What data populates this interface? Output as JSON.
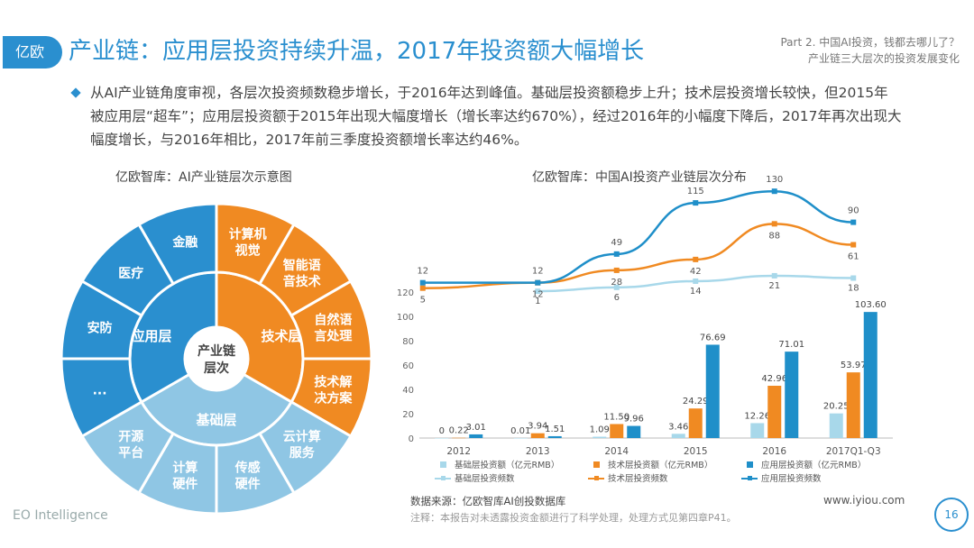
{
  "header": {
    "logo": "亿欧",
    "title": "产业链：应用层投资持续升温，2017年投资额大幅增长",
    "part_line1": "Part 2. 中国AI投资，钱都去哪儿了？",
    "part_line2": "产业链三大层次的投资发展变化"
  },
  "summary": "从AI产业链角度审视，各层次投资频数稳步增长，于2016年达到峰值。基础层投资额稳步上升；技术层投资增长较快，但2015年被应用层“超车”；应用层投资额于2015年出现大幅度增长（增长率达约670%），经过2016年的小幅度下降后，2017年再次出现大幅度增长，与2016年相比，2017年前三季度投资额增长率达约46%。",
  "left_chart": {
    "title": "亿欧智库：AI产业链层次示意图",
    "center": [
      "产业链",
      "层次"
    ],
    "inner": {
      "application": "应用层",
      "technology": "技术层",
      "foundation": "基础层"
    },
    "application_items": [
      "金融",
      "医疗",
      "安防",
      "..."
    ],
    "technology_items": [
      [
        "计算机",
        "视觉"
      ],
      [
        "智能语",
        "音技术"
      ],
      [
        "自然语",
        "言处理"
      ],
      [
        "技术解",
        "决方案"
      ]
    ],
    "foundation_items": [
      [
        "云计算",
        "服务"
      ],
      [
        "传感",
        "硬件"
      ],
      [
        "计算",
        "硬件"
      ],
      [
        "开源",
        "平台"
      ]
    ],
    "colors": {
      "application": "#2a8fcf",
      "technology": "#f08a22",
      "foundation": "#8fc6e4"
    }
  },
  "chart_data": {
    "type": "bar",
    "title": "亿欧智库：中国AI投资产业链层次分布",
    "categories": [
      "2012",
      "2013",
      "2014",
      "2015",
      "2016",
      "2017Q1-Q3"
    ],
    "ylim": [
      0,
      120
    ],
    "yticks": [
      0,
      20,
      40,
      60,
      80,
      100,
      120
    ],
    "series": [
      {
        "name": "基础层投资额（亿元RMB）",
        "color": "#a8d8ea",
        "values": [
          0,
          0.01,
          1.09,
          3.46,
          12.26,
          20.25
        ],
        "labels": [
          "0",
          "0.01",
          "1.09",
          "3.46",
          "12.26",
          "20.25"
        ]
      },
      {
        "name": "技术层投资额（亿元RMB）",
        "color": "#f08a22",
        "values": [
          0.22,
          3.94,
          11.5,
          24.29,
          42.96,
          53.97
        ],
        "labels": [
          "0.22",
          "3.94",
          "11.50",
          "24.29",
          "42.96",
          "53.97"
        ]
      },
      {
        "name": "应用层投资额（亿元RMB）",
        "color": "#1f8fc9",
        "values": [
          3.01,
          1.51,
          9.96,
          76.69,
          71.01,
          103.6
        ],
        "labels": [
          "3.01",
          "1.51",
          "9.96",
          "76.69",
          "71.01",
          "103.60"
        ]
      }
    ],
    "lines": [
      {
        "name": "基础层投资频数",
        "color": "#a8d8ea",
        "values": [
          null,
          1,
          6,
          14,
          21,
          18
        ]
      },
      {
        "name": "技术层投资频数",
        "color": "#f08a22",
        "values": [
          5,
          12,
          28,
          42,
          88,
          61
        ]
      },
      {
        "name": "应用层投资频数",
        "color": "#1f8fc9",
        "values": [
          12,
          12,
          49,
          115,
          130,
          90
        ]
      }
    ]
  },
  "footer": {
    "source": "数据来源：亿欧智库AI创投数据库",
    "note": "注释：本报告对未透露投资金额进行了科学处理，处理方式见第四章P41。",
    "site": "www.iyiou.com",
    "brand": "EO Intelligence",
    "page": "16"
  }
}
